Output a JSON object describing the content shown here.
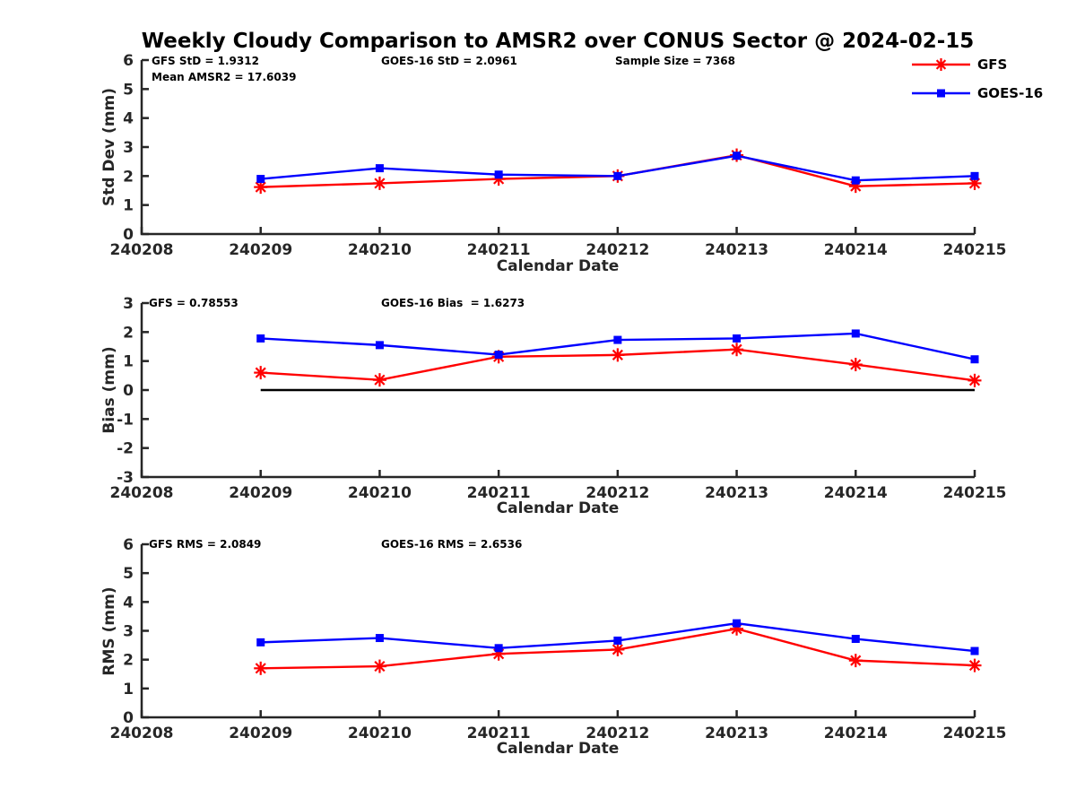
{
  "title": "Weekly Cloudy Comparison to AMSR2 over CONUS Sector @ 2024-02-15",
  "colors": {
    "gfs": "#ff0000",
    "goes16": "#0000ff",
    "axis": "#262626",
    "zero_line": "#000000",
    "annotation_text": "#000000"
  },
  "legend": {
    "items": [
      {
        "label": "GFS",
        "marker": "asterisk-marker",
        "color": "#ff0000"
      },
      {
        "label": "GOES-16",
        "marker": "square-marker",
        "color": "#0000ff"
      }
    ]
  },
  "chart_data": [
    {
      "type": "line",
      "id": "std-dev",
      "ylabel": "Std Dev (mm)",
      "xlabel": "Calendar Date",
      "ylim": [
        0,
        6
      ],
      "yticks": [
        0,
        1,
        2,
        3,
        4,
        5,
        6
      ],
      "xticks": [
        "240208",
        "240209",
        "240210",
        "240211",
        "240212",
        "240213",
        "240214",
        "240215"
      ],
      "x": [
        "240209",
        "240210",
        "240211",
        "240212",
        "240213",
        "240214",
        "240215"
      ],
      "series": [
        {
          "name": "GFS",
          "color": "#ff0000",
          "marker": "asterisk",
          "values": [
            1.62,
            1.75,
            1.9,
            2.0,
            2.72,
            1.65,
            1.75
          ]
        },
        {
          "name": "GOES-16",
          "color": "#0000ff",
          "marker": "square",
          "values": [
            1.9,
            2.27,
            2.05,
            2.0,
            2.7,
            1.85,
            2.0
          ]
        }
      ],
      "zero_line": false,
      "grid": false,
      "annotations": [
        {
          "text": "GFS StD = 1.9312"
        },
        {
          "text": "Mean AMSR2 = 17.6039"
        },
        {
          "text": "GOES-16 StD = 2.0961"
        },
        {
          "text": "Sample Size = 7368"
        }
      ]
    },
    {
      "type": "line",
      "id": "bias",
      "ylabel": "Bias (mm)",
      "xlabel": "Calendar Date",
      "ylim": [
        -3,
        3
      ],
      "yticks": [
        -3,
        -2,
        -1,
        0,
        1,
        2,
        3
      ],
      "xticks": [
        "240208",
        "240209",
        "240210",
        "240211",
        "240212",
        "240213",
        "240214",
        "240215"
      ],
      "x": [
        "240209",
        "240210",
        "240211",
        "240212",
        "240213",
        "240214",
        "240215"
      ],
      "series": [
        {
          "name": "GFS",
          "color": "#ff0000",
          "marker": "asterisk",
          "values": [
            0.6,
            0.35,
            1.15,
            1.21,
            1.4,
            0.88,
            0.33
          ]
        },
        {
          "name": "GOES-16",
          "color": "#0000ff",
          "marker": "square",
          "values": [
            1.78,
            1.55,
            1.22,
            1.73,
            1.78,
            1.95,
            1.06
          ]
        }
      ],
      "zero_line": true,
      "grid": false,
      "annotations": [
        {
          "text": "GFS = 0.78553"
        },
        {
          "text": "GOES-16 Bias  = 1.6273"
        }
      ]
    },
    {
      "type": "line",
      "id": "rms",
      "ylabel": "RMS (mm)",
      "xlabel": "Calendar Date",
      "ylim": [
        0,
        6
      ],
      "yticks": [
        0,
        1,
        2,
        3,
        4,
        5,
        6
      ],
      "xticks": [
        "240208",
        "240209",
        "240210",
        "240211",
        "240212",
        "240213",
        "240214",
        "240215"
      ],
      "x": [
        "240209",
        "240210",
        "240211",
        "240212",
        "240213",
        "240214",
        "240215"
      ],
      "series": [
        {
          "name": "GFS",
          "color": "#ff0000",
          "marker": "asterisk",
          "values": [
            1.7,
            1.77,
            2.2,
            2.35,
            3.07,
            1.97,
            1.8
          ]
        },
        {
          "name": "GOES-16",
          "color": "#0000ff",
          "marker": "square",
          "values": [
            2.6,
            2.75,
            2.4,
            2.66,
            3.26,
            2.72,
            2.3
          ]
        }
      ],
      "zero_line": false,
      "grid": false,
      "annotations": [
        {
          "text": "GFS RMS = 2.0849"
        },
        {
          "text": "GOES-16 RMS = 2.6536"
        }
      ]
    }
  ]
}
